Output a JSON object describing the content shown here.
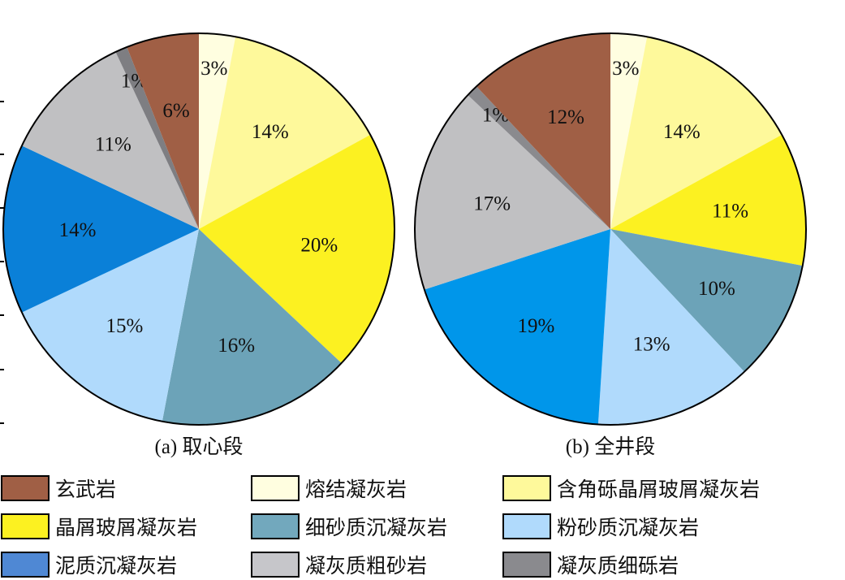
{
  "chart_data": [
    {
      "type": "pie",
      "title": "(a) 取心段",
      "start": "12 o'clock, clockwise",
      "slices": [
        {
          "name": "熔结凝灰岩",
          "value": 3,
          "label": "3%",
          "color": "#fffee0"
        },
        {
          "name": "含角砾晶屑玻屑凝灰岩",
          "value": 14,
          "label": "14%",
          "color": "#fef99b"
        },
        {
          "name": "晶屑玻屑凝灰岩",
          "value": 20,
          "label": "20%",
          "color": "#fcf121"
        },
        {
          "name": "细砂质沉凝灰岩",
          "value": 16,
          "label": "16%",
          "color": "#6ca3b8"
        },
        {
          "name": "粉砂质沉凝灰岩",
          "value": 15,
          "label": "15%",
          "color": "#b0dafc"
        },
        {
          "name": "泥质沉凝灰岩",
          "value": 14,
          "label": "14%",
          "color": "#0a80d8"
        },
        {
          "name": "凝灰质粗砂岩",
          "value": 11,
          "label": "11%",
          "color": "#c0c0c2"
        },
        {
          "name": "凝灰质细砾岩",
          "value": 1,
          "label": "1%",
          "color": "#7e7e82"
        },
        {
          "name": "玄武岩",
          "value": 6,
          "label": "6%",
          "color": "#a05f45"
        }
      ]
    },
    {
      "type": "pie",
      "title": "(b) 全井段",
      "start": "12 o'clock, clockwise",
      "slices": [
        {
          "name": "熔结凝灰岩",
          "value": 3,
          "label": "3%",
          "color": "#fffee0"
        },
        {
          "name": "含角砾晶屑玻屑凝灰岩",
          "value": 14,
          "label": "14%",
          "color": "#fef99b"
        },
        {
          "name": "晶屑玻屑凝灰岩",
          "value": 11,
          "label": "11%",
          "color": "#fcf121"
        },
        {
          "name": "细砂质沉凝灰岩",
          "value": 10,
          "label": "10%",
          "color": "#6ca3b8"
        },
        {
          "name": "粉砂质沉凝灰岩",
          "value": 13,
          "label": "13%",
          "color": "#b0dafc"
        },
        {
          "name": "泥质沉凝灰岩",
          "value": 19,
          "label": "19%",
          "color": "#0096ea"
        },
        {
          "name": "凝灰质粗砂岩",
          "value": 17,
          "label": "17%",
          "color": "#c0c0c2"
        },
        {
          "name": "凝灰质细砾岩",
          "value": 1,
          "label": "1%",
          "color": "#8a8a8e"
        },
        {
          "name": "玄武岩",
          "value": 12,
          "label": "12%",
          "color": "#a05f45"
        }
      ]
    }
  ],
  "legend": [
    {
      "label": "玄武岩",
      "color": "#a05f45"
    },
    {
      "label": "熔结凝灰岩",
      "color": "#fffee0"
    },
    {
      "label": "含角砾晶屑玻屑凝灰岩",
      "color": "#fef99b"
    },
    {
      "label": "晶屑玻屑凝灰岩",
      "color": "#fcf121"
    },
    {
      "label": "细砂质沉凝灰岩",
      "color": "#72a8bd"
    },
    {
      "label": "粉砂质沉凝灰岩",
      "color": "#b0dafc"
    },
    {
      "label": "泥质沉凝灰岩",
      "color": "#4f88d4"
    },
    {
      "label": "凝灰质粗砂岩",
      "color": "#c6c6ca"
    },
    {
      "label": "凝灰质细砾岩",
      "color": "#8a8a8e"
    }
  ]
}
